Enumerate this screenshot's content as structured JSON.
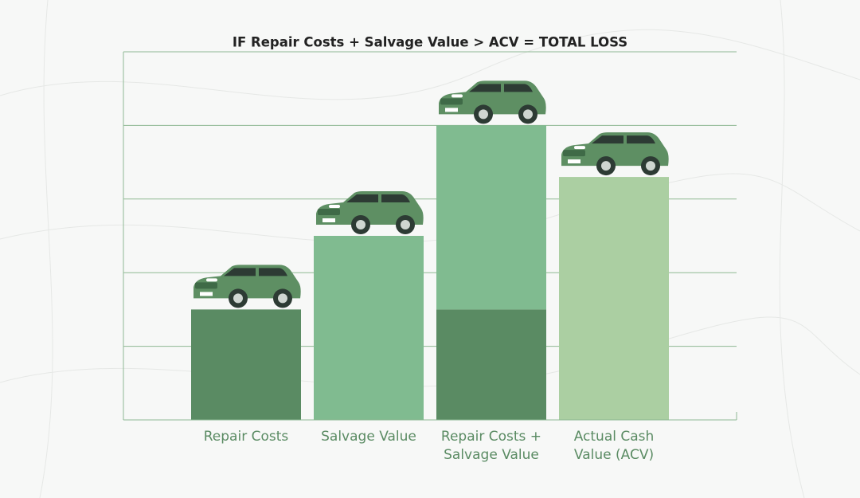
{
  "chart_data": {
    "type": "stacked-bar",
    "title": "IF Repair Costs + Salvage Value > ACV = TOTAL LOSS",
    "categories": [
      "Repair Costs",
      "Salvage Value",
      "Repair Costs + Salvage Value",
      "Actual Cash Value (ACV)"
    ],
    "series": [
      {
        "color": "#5a8b63",
        "values": [
          1.5,
          null,
          1.5,
          null
        ]
      },
      {
        "color": "#80bb90",
        "values": [
          null,
          2.5,
          2.5,
          null
        ]
      },
      {
        "color": "#abcfa2",
        "values": [
          null,
          null,
          null,
          3.3
        ]
      }
    ],
    "ylim": [
      0,
      5
    ],
    "yticks": [
      0,
      1,
      2,
      3,
      4,
      5
    ],
    "grid": true,
    "label_color": "#5a8b63"
  }
}
